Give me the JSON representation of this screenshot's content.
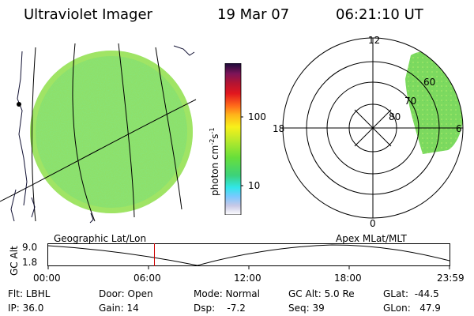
{
  "header": {
    "title": "Ultraviolet Imager",
    "date": "19 Mar 07",
    "time": "06:21:10 UT"
  },
  "colorbar": {
    "unit": "photon cm",
    "unit_exp1": "-2",
    "unit_s": "s",
    "unit_exp2": "-1",
    "ticks": [
      {
        "label": "100",
        "value": 100
      },
      {
        "label": "10",
        "value": 10
      }
    ]
  },
  "polar": {
    "labels": {
      "top": "12",
      "left": "18",
      "right": "6",
      "bottom": "0",
      "r60": "60",
      "r70": "70",
      "r80": "80"
    }
  },
  "timeline": {
    "left_label": "Geographic Lat/Lon",
    "right_label": "Apex  MLat/MLT",
    "axis_title": "GC Alt",
    "y_top": "9.0",
    "y_bottom": "1.8",
    "x_ticks": [
      "00:00",
      "06:00",
      "12:00",
      "18:00",
      "23:59"
    ],
    "current_time_hours": 6.35
  },
  "footer": {
    "flt": "Flt: LBHL",
    "ip": "IP: 36.0",
    "door": "Door: Open",
    "gain": "Gain: 14",
    "mode": "Mode: Normal",
    "dsp": "Dsp:    -7.2",
    "gcalt": "GC Alt: 5.0 Re",
    "seq": "Seq: 39",
    "glat": "GLat:  -44.5",
    "glon": "GLon:   47.9"
  }
}
